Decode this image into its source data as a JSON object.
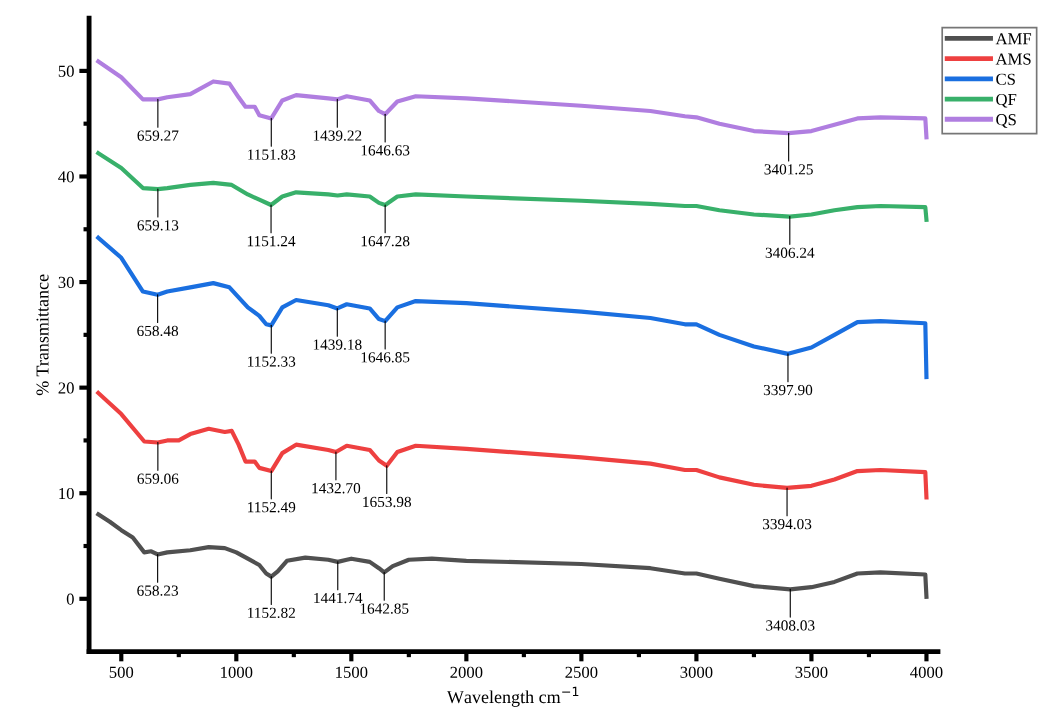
{
  "chart_data": {
    "type": "line",
    "xlabel": "Wavelength cm$^{−1}$",
    "ylabel": "% Transmittance",
    "xlim": [
      360,
      4050
    ],
    "ylim": [
      -5,
      55
    ],
    "xticks": [
      500,
      {
        "value": 750,
        "label": null
      },
      1000,
      {
        "value": 1250,
        "label": null
      },
      1500,
      {
        "value": 1750,
        "label": null
      },
      2000,
      {
        "value": 2250,
        "label": null
      },
      2500,
      {
        "value": 2750,
        "label": null
      },
      3000,
      {
        "value": 3250,
        "label": null
      },
      3500,
      {
        "value": 3750,
        "label": null
      },
      4000
    ],
    "yticks": [
      0,
      {
        "value": 5,
        "label": null
      },
      10,
      {
        "value": 15,
        "label": null
      },
      20,
      {
        "value": 25,
        "label": null
      },
      30,
      {
        "value": 35,
        "label": null
      },
      40,
      {
        "value": 45,
        "label": null
      },
      50
    ],
    "grid": false,
    "legend": "top right",
    "marker": "none",
    "line_style": "solid",
    "series": [
      {
        "name": "AMF",
        "color": "#505050",
        "x": [
          400,
          450,
          500,
          550,
          600,
          630,
          658,
          700,
          800,
          880,
          950,
          1000,
          1050,
          1100,
          1130,
          1152,
          1180,
          1220,
          1300,
          1400,
          1441,
          1480,
          1500,
          1580,
          1620,
          1643,
          1680,
          1750,
          1850,
          2000,
          2500,
          2800,
          2950,
          3000,
          3100,
          3250,
          3408,
          3500,
          3600,
          3700,
          3800,
          3995,
          4000
        ],
        "values": [
          8.0,
          7.3,
          6.5,
          5.8,
          4.4,
          4.5,
          4.2,
          4.4,
          4.6,
          4.9,
          4.8,
          4.4,
          3.8,
          3.2,
          2.4,
          2.1,
          2.6,
          3.6,
          3.9,
          3.7,
          3.5,
          3.7,
          3.8,
          3.5,
          2.9,
          2.5,
          3.1,
          3.7,
          3.8,
          3.6,
          3.3,
          2.9,
          2.4,
          2.4,
          1.9,
          1.2,
          0.9,
          1.1,
          1.6,
          2.4,
          2.5,
          2.3,
          0.2
        ]
      },
      {
        "name": "AMS",
        "color": "#ee4040",
        "x": [
          400,
          500,
          600,
          659,
          700,
          750,
          800,
          880,
          950,
          980,
          1010,
          1040,
          1080,
          1100,
          1152,
          1200,
          1260,
          1400,
          1433,
          1480,
          1580,
          1620,
          1654,
          1700,
          1780,
          2000,
          2500,
          2800,
          2950,
          3000,
          3100,
          3250,
          3394,
          3500,
          3600,
          3700,
          3800,
          3995,
          4000
        ],
        "values": [
          19.5,
          17.5,
          14.9,
          14.8,
          15.0,
          15.0,
          15.6,
          16.1,
          15.8,
          15.9,
          14.6,
          13.0,
          13.0,
          12.4,
          12.1,
          13.8,
          14.6,
          14.1,
          13.9,
          14.5,
          14.1,
          13.1,
          12.6,
          13.9,
          14.5,
          14.2,
          13.4,
          12.8,
          12.2,
          12.2,
          11.5,
          10.8,
          10.5,
          10.7,
          11.3,
          12.1,
          12.2,
          12.0,
          9.6
        ]
      },
      {
        "name": "CS",
        "color": "#1a6fe0",
        "x": [
          400,
          500,
          594,
          658,
          700,
          800,
          900,
          970,
          1050,
          1100,
          1130,
          1152,
          1200,
          1260,
          1400,
          1439,
          1480,
          1580,
          1620,
          1647,
          1700,
          1780,
          2000,
          2500,
          2800,
          2950,
          3000,
          3100,
          3250,
          3398,
          3500,
          3600,
          3700,
          3800,
          3995,
          4000
        ],
        "values": [
          34.2,
          32.3,
          29.1,
          28.8,
          29.1,
          29.5,
          29.9,
          29.5,
          27.6,
          26.8,
          26.0,
          25.9,
          27.6,
          28.3,
          27.8,
          27.5,
          27.9,
          27.5,
          26.5,
          26.3,
          27.6,
          28.2,
          28.0,
          27.2,
          26.6,
          26.0,
          26.0,
          25.0,
          23.9,
          23.2,
          23.8,
          25.0,
          26.2,
          26.3,
          26.1,
          21.0
        ]
      },
      {
        "name": "QF",
        "color": "#38b06a",
        "x": [
          400,
          500,
          594,
          659,
          700,
          800,
          900,
          980,
          1050,
          1100,
          1151,
          1200,
          1260,
          1400,
          1440,
          1480,
          1580,
          1620,
          1647,
          1700,
          1780,
          2000,
          2500,
          2800,
          2950,
          3000,
          3100,
          3250,
          3406,
          3500,
          3600,
          3700,
          3800,
          3995,
          4000
        ],
        "values": [
          42.2,
          40.8,
          38.9,
          38.8,
          38.9,
          39.2,
          39.4,
          39.2,
          38.3,
          37.8,
          37.3,
          38.1,
          38.5,
          38.3,
          38.2,
          38.3,
          38.1,
          37.5,
          37.3,
          38.1,
          38.3,
          38.1,
          37.7,
          37.4,
          37.2,
          37.2,
          36.8,
          36.4,
          36.2,
          36.4,
          36.8,
          37.1,
          37.2,
          37.1,
          35.9
        ]
      },
      {
        "name": "QS",
        "color": "#b07ee0",
        "x": [
          400,
          500,
          594,
          659,
          700,
          800,
          900,
          970,
          1010,
          1040,
          1080,
          1100,
          1152,
          1200,
          1260,
          1400,
          1439,
          1480,
          1580,
          1620,
          1647,
          1700,
          1780,
          2000,
          2500,
          2800,
          2950,
          3000,
          3100,
          3250,
          3401,
          3500,
          3600,
          3700,
          3800,
          3995,
          4000
        ],
        "values": [
          50.9,
          49.4,
          47.3,
          47.3,
          47.5,
          47.8,
          49.0,
          48.8,
          47.5,
          46.6,
          46.6,
          45.8,
          45.5,
          47.2,
          47.7,
          47.4,
          47.3,
          47.6,
          47.2,
          46.2,
          45.9,
          47.1,
          47.6,
          47.4,
          46.7,
          46.2,
          45.7,
          45.6,
          45.0,
          44.3,
          44.1,
          44.3,
          44.9,
          45.5,
          45.6,
          45.5,
          43.7
        ]
      }
    ],
    "annotations": [
      {
        "text": "659.27",
        "x": 659,
        "y": 47.3
      },
      {
        "text": "1151.83",
        "x": 1152,
        "y": 45.5
      },
      {
        "text": "1439.22",
        "x": 1439,
        "y": 47.3
      },
      {
        "text": "1646.63",
        "x": 1647,
        "y": 45.9
      },
      {
        "text": "3401.25",
        "x": 3401,
        "y": 44.1
      },
      {
        "text": "659.13",
        "x": 659,
        "y": 38.8
      },
      {
        "text": "1151.24",
        "x": 1151,
        "y": 37.3
      },
      {
        "text": "1647.28",
        "x": 1647,
        "y": 37.3
      },
      {
        "text": "3406.24",
        "x": 3406,
        "y": 36.2
      },
      {
        "text": "658.48",
        "x": 658,
        "y": 28.8
      },
      {
        "text": "1152.33",
        "x": 1152,
        "y": 25.9
      },
      {
        "text": "1439.18",
        "x": 1439,
        "y": 27.5
      },
      {
        "text": "1646.85",
        "x": 1647,
        "y": 26.3
      },
      {
        "text": "3397.90",
        "x": 3398,
        "y": 23.2
      },
      {
        "text": "659.06",
        "x": 659,
        "y": 14.8
      },
      {
        "text": "1152.49",
        "x": 1152,
        "y": 12.1
      },
      {
        "text": "1432.70",
        "x": 1433,
        "y": 13.9
      },
      {
        "text": "1653.98",
        "x": 1654,
        "y": 12.6
      },
      {
        "text": "3394.03",
        "x": 3394,
        "y": 10.5
      },
      {
        "text": "658.23",
        "x": 658,
        "y": 4.2
      },
      {
        "text": "1152.82",
        "x": 1152,
        "y": 2.1
      },
      {
        "text": "1441.74",
        "x": 1441,
        "y": 3.5
      },
      {
        "text": "1642.85",
        "x": 1643,
        "y": 2.5
      },
      {
        "text": "3408.03",
        "x": 3408,
        "y": 0.9
      }
    ]
  }
}
